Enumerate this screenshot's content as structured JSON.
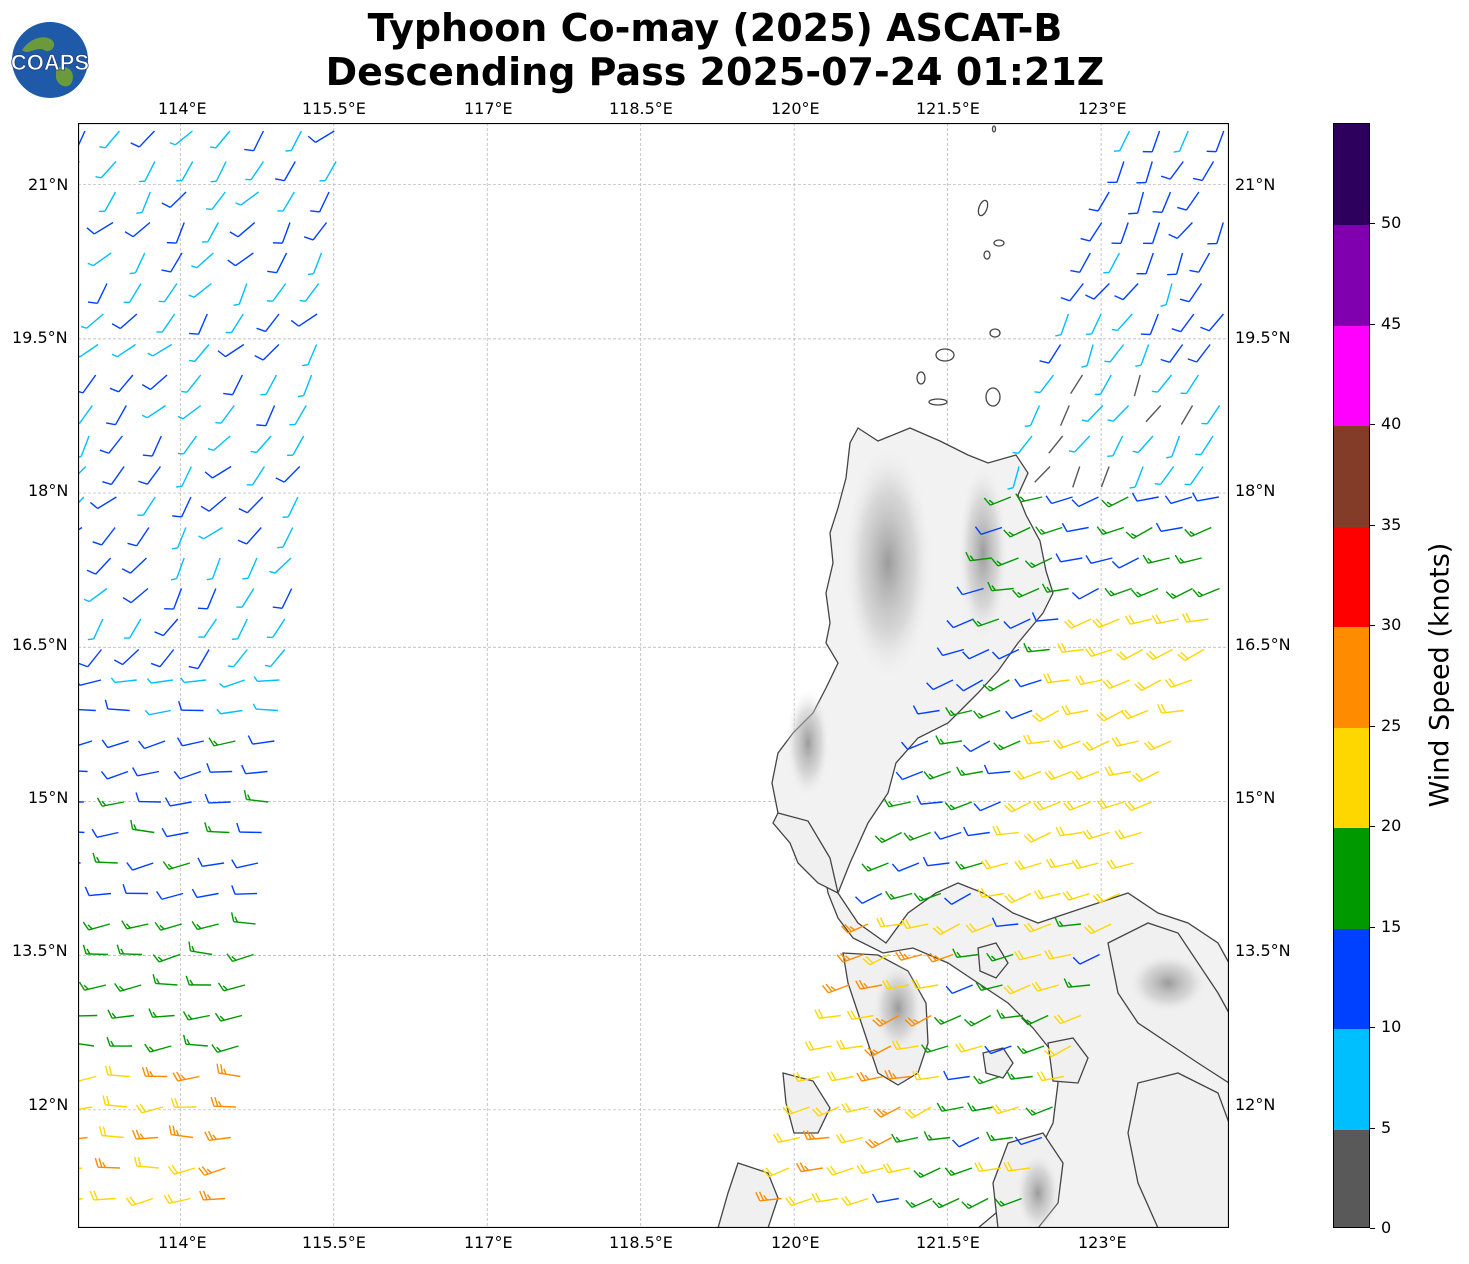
{
  "header": {
    "title_line1": "Typhoon Co-may (2025) ASCAT-B",
    "title_line2": "Descending Pass 2025-07-24 01:21Z",
    "logo_text": "COAPS"
  },
  "map": {
    "lon_labels": [
      "114°E",
      "115.5°E",
      "117°E",
      "118.5°E",
      "120°E",
      "121.5°E",
      "123°E"
    ],
    "lat_labels": [
      "21°N",
      "19.5°N",
      "18°N",
      "16.5°N",
      "15°N",
      "13.5°N",
      "12°N"
    ],
    "extent": {
      "lon": [
        113.0,
        124.25
      ],
      "lat": [
        10.85,
        21.6
      ]
    },
    "land_color": "#f2f2f2",
    "terrain_color": "#bdbdbd",
    "coastline_color": "#444444"
  },
  "colorbar": {
    "title": "Wind Speed (knots)",
    "tick_labels": [
      "0",
      "5",
      "10",
      "15",
      "20",
      "25",
      "30",
      "35",
      "40",
      "45",
      "50"
    ],
    "bins": [
      {
        "min": 0,
        "max": 5,
        "color": "#595959"
      },
      {
        "min": 5,
        "max": 10,
        "color": "#00bfff"
      },
      {
        "min": 10,
        "max": 15,
        "color": "#0040ff"
      },
      {
        "min": 15,
        "max": 20,
        "color": "#009900"
      },
      {
        "min": 20,
        "max": 25,
        "color": "#ffd700"
      },
      {
        "min": 25,
        "max": 30,
        "color": "#ff8c00"
      },
      {
        "min": 30,
        "max": 35,
        "color": "#ff0000"
      },
      {
        "min": 35,
        "max": 40,
        "color": "#833c28"
      },
      {
        "min": 40,
        "max": 45,
        "color": "#ff00ff"
      },
      {
        "min": 45,
        "max": 50,
        "color": "#8000b0"
      },
      {
        "min": 50,
        "max": 55,
        "color": "#2e005e"
      }
    ]
  }
}
